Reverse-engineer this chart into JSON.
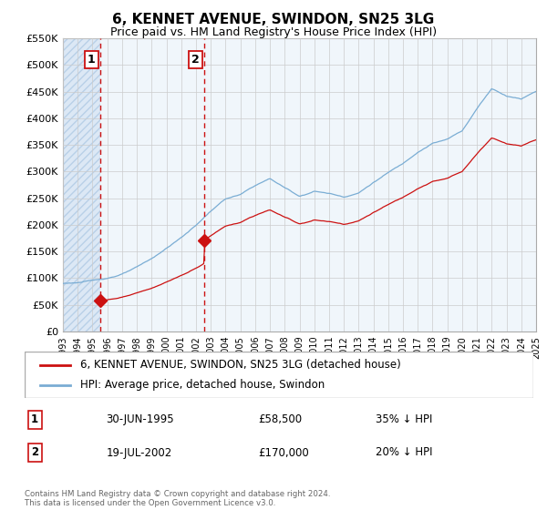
{
  "title": "6, KENNET AVENUE, SWINDON, SN25 3LG",
  "subtitle": "Price paid vs. HM Land Registry's House Price Index (HPI)",
  "footer": "Contains HM Land Registry data © Crown copyright and database right 2024.\nThis data is licensed under the Open Government Licence v3.0.",
  "legend_line1": "6, KENNET AVENUE, SWINDON, SN25 3LG (detached house)",
  "legend_line2": "HPI: Average price, detached house, Swindon",
  "transaction1_date": "30-JUN-1995",
  "transaction1_price": "£58,500",
  "transaction1_hpi": "35% ↓ HPI",
  "transaction2_date": "19-JUL-2002",
  "transaction2_price": "£170,000",
  "transaction2_hpi": "20% ↓ HPI",
  "transaction1_x": 1995.5,
  "transaction1_y": 58500,
  "transaction2_x": 2002.55,
  "transaction2_y": 170000,
  "ylim": [
    0,
    550000
  ],
  "xlim_start": 1993,
  "xlim_end": 2025,
  "hatch_bg_color": "#dce8f5",
  "grid_color": "#cccccc",
  "hpi_line_color": "#7aadd4",
  "price_line_color": "#cc1111",
  "dashed_line_color": "#cc1111",
  "box_color": "#cc1111",
  "plot_bg_color": "#f0f6fb",
  "ytick_labels": [
    "£0",
    "£50K",
    "£100K",
    "£150K",
    "£200K",
    "£250K",
    "£300K",
    "£350K",
    "£400K",
    "£450K",
    "£500K",
    "£550K"
  ],
  "ytick_values": [
    0,
    50000,
    100000,
    150000,
    200000,
    250000,
    300000,
    350000,
    400000,
    450000,
    500000,
    550000
  ],
  "xtick_years": [
    1993,
    1994,
    1995,
    1996,
    1997,
    1998,
    1999,
    2000,
    2001,
    2002,
    2003,
    2004,
    2005,
    2006,
    2007,
    2008,
    2009,
    2010,
    2011,
    2012,
    2013,
    2014,
    2015,
    2016,
    2017,
    2018,
    2019,
    2020,
    2021,
    2022,
    2023,
    2024,
    2025
  ]
}
